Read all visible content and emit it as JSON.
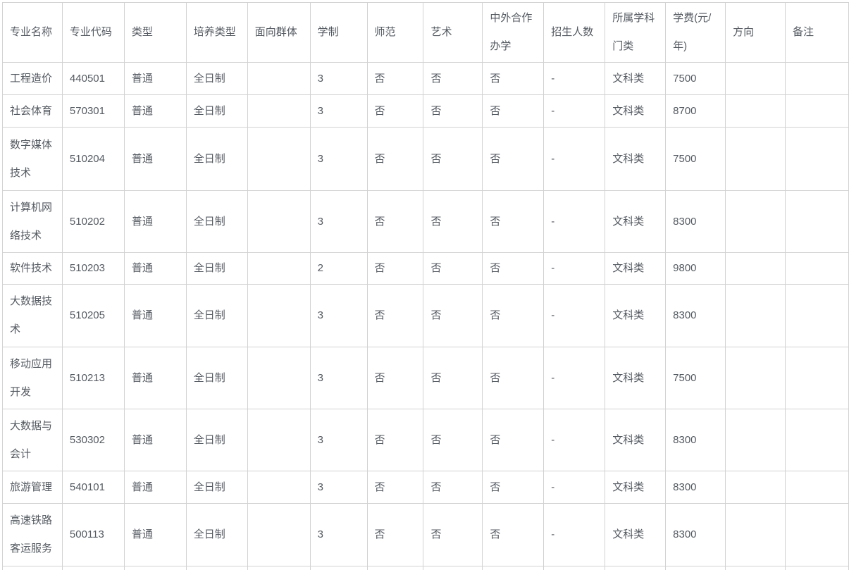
{
  "page": {
    "background_color": "#ffffff",
    "text_color": "#545a61",
    "border_color": "#d2d2d2"
  },
  "table": {
    "columns": [
      "专业名称",
      "专业代码",
      "类型",
      "培养类型",
      "面向群体",
      "学制",
      "师范",
      "艺术",
      "中外合作办学",
      "招生人数",
      "所属学科门类",
      "学费(元/年)",
      "方向",
      "备注"
    ],
    "rows": [
      [
        "工程造价",
        "440501",
        "普通",
        "全日制",
        "",
        "3",
        "否",
        "否",
        "否",
        "-",
        "文科类",
        "7500",
        "",
        ""
      ],
      [
        "社会体育",
        "570301",
        "普通",
        "全日制",
        "",
        "3",
        "否",
        "否",
        "否",
        "-",
        "文科类",
        "8700",
        "",
        ""
      ],
      [
        "数字媒体技术",
        "510204",
        "普通",
        "全日制",
        "",
        "3",
        "否",
        "否",
        "否",
        "-",
        "文科类",
        "7500",
        "",
        ""
      ],
      [
        "计算机网络技术",
        "510202",
        "普通",
        "全日制",
        "",
        "3",
        "否",
        "否",
        "否",
        "-",
        "文科类",
        "8300",
        "",
        ""
      ],
      [
        "软件技术",
        "510203",
        "普通",
        "全日制",
        "",
        "2",
        "否",
        "否",
        "否",
        "-",
        "文科类",
        "9800",
        "",
        ""
      ],
      [
        "大数据技术",
        "510205",
        "普通",
        "全日制",
        "",
        "3",
        "否",
        "否",
        "否",
        "-",
        "文科类",
        "8300",
        "",
        ""
      ],
      [
        "移动应用开发",
        "510213",
        "普通",
        "全日制",
        "",
        "3",
        "否",
        "否",
        "否",
        "-",
        "文科类",
        "7500",
        "",
        ""
      ],
      [
        "大数据与会计",
        "530302",
        "普通",
        "全日制",
        "",
        "3",
        "否",
        "否",
        "否",
        "-",
        "文科类",
        "8300",
        "",
        ""
      ],
      [
        "旅游管理",
        "540101",
        "普通",
        "全日制",
        "",
        "3",
        "否",
        "否",
        "否",
        "-",
        "文科类",
        "8300",
        "",
        ""
      ],
      [
        "高速铁路客运服务",
        "500113",
        "普通",
        "全日制",
        "",
        "3",
        "否",
        "否",
        "否",
        "-",
        "文科类",
        "8300",
        "",
        ""
      ],
      [
        "",
        "",
        "",
        "",
        "",
        "",
        "",
        "",
        "",
        "",
        "",
        "",
        "",
        ""
      ]
    ]
  }
}
